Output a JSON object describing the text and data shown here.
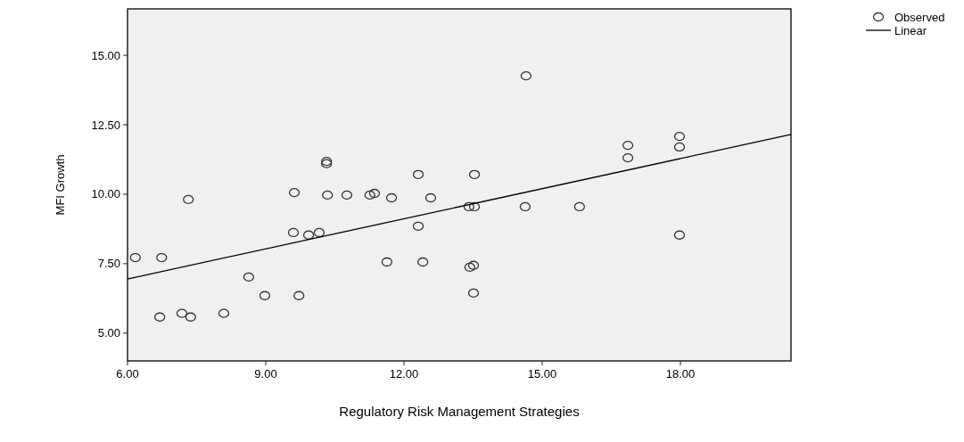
{
  "chart_data": {
    "type": "scatter",
    "xlabel": "Regulatory Risk Management Strategies",
    "ylabel": "MFI Growth",
    "xlim": [
      6,
      20.4
    ],
    "ylim": [
      4,
      16.67
    ],
    "xticks": [
      {
        "value": 6,
        "label": "6.00"
      },
      {
        "value": 9,
        "label": "9.00"
      },
      {
        "value": 12,
        "label": "12.00"
      },
      {
        "value": 15,
        "label": "15.00"
      },
      {
        "value": 18,
        "label": "18.00"
      }
    ],
    "yticks": [
      {
        "value": 5,
        "label": "5.00"
      },
      {
        "value": 7.5,
        "label": "7.50"
      },
      {
        "value": 10,
        "label": "10.00"
      },
      {
        "value": 12.5,
        "label": "12.50"
      },
      {
        "value": 15,
        "label": "15.00"
      }
    ],
    "grid": false,
    "legend": "top right",
    "marker": "circle",
    "series": [
      {
        "name": "Observed",
        "color": "#333333",
        "x": [
          6.17,
          6.74,
          6.7,
          7.18,
          7.37,
          7.32,
          8.09,
          8.63,
          8.98,
          9.6,
          9.62,
          9.72,
          9.93,
          10.16,
          10.32,
          10.32,
          10.34,
          10.76,
          11.26,
          11.36,
          11.73,
          11.63,
          12.31,
          12.31,
          12.41,
          12.58,
          13.41,
          13.53,
          13.53,
          13.43,
          13.51,
          13.51,
          14.63,
          14.65,
          15.81,
          16.86,
          16.86,
          17.98,
          17.98,
          17.98
        ],
        "values": [
          7.72,
          7.72,
          5.58,
          5.71,
          5.58,
          9.81,
          5.71,
          7.02,
          6.35,
          8.62,
          10.06,
          6.35,
          8.53,
          8.62,
          11.18,
          11.1,
          9.97,
          9.97,
          9.97,
          10.03,
          9.87,
          7.56,
          10.71,
          8.85,
          7.56,
          9.87,
          9.55,
          9.55,
          10.71,
          7.37,
          7.44,
          6.44,
          9.55,
          14.26,
          9.55,
          11.76,
          11.31,
          12.08,
          11.7,
          8.53
        ]
      },
      {
        "name": "Linear",
        "type": "line",
        "color": "#000000",
        "line_style": "solid",
        "marker": "none",
        "x": [
          6,
          20.4
        ],
        "values": [
          6.95,
          12.15
        ]
      }
    ]
  }
}
